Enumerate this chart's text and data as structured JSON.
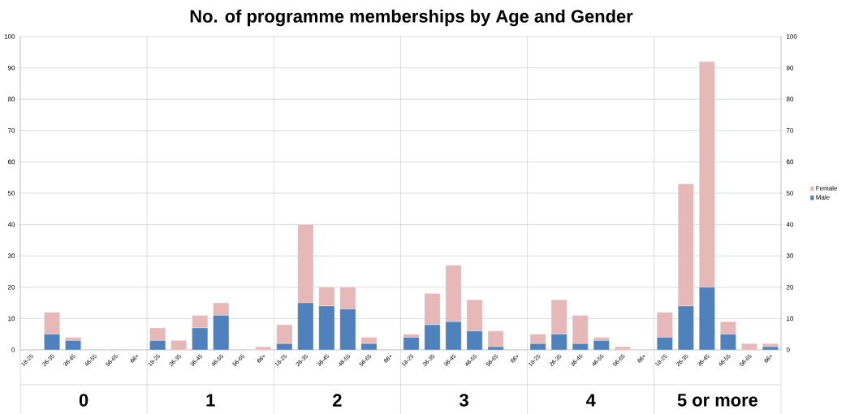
{
  "chart_data": {
    "type": "bar",
    "title": "No. of programme memberships by Age and Gender",
    "categories": [
      "18-25",
      "26-35",
      "36-45",
      "46-55",
      "56-65",
      "66+",
      "18-25",
      "26-35",
      "36-45",
      "46-55",
      "56-65",
      "66+",
      "18-25",
      "26-35",
      "36-45",
      "46-55",
      "56-65",
      "66+",
      "18-25",
      "26-35",
      "36-45",
      "46-55",
      "56-65",
      "66+",
      "18-25",
      "26-35",
      "36-45",
      "46-55",
      "56-65",
      "66+",
      "18-25",
      "26-35",
      "36-45",
      "46-55",
      "56-65",
      "66+"
    ],
    "series": [
      {
        "name": "Male",
        "color": "#4f81bd",
        "values": [
          0,
          5,
          3,
          0,
          0,
          0,
          3,
          0,
          7,
          11,
          0,
          0,
          2,
          15,
          14,
          13,
          2,
          0,
          4,
          8,
          9,
          6,
          1,
          0,
          2,
          5,
          2,
          3,
          0,
          0,
          4,
          14,
          20,
          5,
          0,
          1
        ]
      },
      {
        "name": "Female",
        "color": "#e6b9b8",
        "values": [
          0,
          7,
          1,
          0,
          0,
          0,
          4,
          3,
          4,
          4,
          0,
          1,
          6,
          25,
          6,
          7,
          2,
          0,
          1,
          10,
          18,
          10,
          5,
          0,
          3,
          11,
          9,
          1,
          1,
          0,
          8,
          39,
          72,
          4,
          2,
          1
        ]
      }
    ],
    "stacked": true,
    "annotations": [
      "0",
      "1",
      "2",
      "3",
      "4",
      "5 or more"
    ],
    "ylim": [
      0,
      100
    ],
    "yticks": [
      0,
      10,
      20,
      30,
      40,
      50,
      60,
      70,
      80,
      90,
      100
    ],
    "y2lim": [
      0,
      100
    ],
    "y2ticks": [
      0,
      10,
      20,
      30,
      40,
      50,
      60,
      70,
      80,
      90,
      100
    ],
    "grid": "y",
    "legend": "right"
  }
}
